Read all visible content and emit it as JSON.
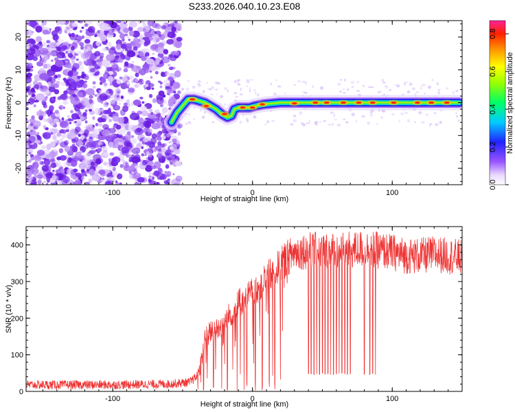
{
  "title": "S233.2026.040.10.23.E08",
  "colors": {
    "snr_line": "#ee3333",
    "scatter": "#7722ee",
    "axis": "#000000"
  },
  "chart_data": [
    {
      "type": "heatmap",
      "name": "spectrogram",
      "xlabel": "Height of straight line (km)",
      "ylabel": "Frequency (Hz)",
      "xlim": [
        -162,
        150
      ],
      "ylim": [
        -25,
        25
      ],
      "xticks": [
        -100,
        0,
        100
      ],
      "xtick_labels": [
        "-100",
        "0",
        "100"
      ],
      "yticks": [
        -20,
        -10,
        0,
        10,
        20
      ],
      "ytick_labels": [
        "-20",
        "-10",
        "0",
        "10",
        "20"
      ],
      "noise_region_x": [
        -162,
        -55
      ],
      "noise_sparse_x": [
        -55,
        -50
      ],
      "ridge": {
        "x": [
          -58,
          -54,
          -50,
          -46,
          -42,
          -38,
          -34,
          -30,
          -26,
          -22,
          -18,
          -15,
          -13,
          -10,
          -6,
          -2,
          2,
          8,
          20,
          40,
          60,
          80,
          100,
          120,
          140,
          148
        ],
        "freq": [
          -6,
          -3,
          -1,
          1,
          1,
          0.5,
          0,
          -1,
          -2,
          -3.5,
          -4.5,
          -4,
          -2,
          -1.5,
          -1.5,
          -1.5,
          -1,
          -0.5,
          0,
          0,
          0,
          0,
          0,
          0,
          0,
          0
        ]
      },
      "ridge_peaks": [
        {
          "x": -43,
          "freq": 1
        },
        {
          "x": -33,
          "freq": -1
        },
        {
          "x": -20,
          "freq": -3.5
        },
        {
          "x": -7,
          "freq": -1.5
        },
        {
          "x": 0,
          "freq": -1.5
        },
        {
          "x": 7,
          "freq": -0.5
        },
        {
          "x": 30,
          "freq": -0.2
        },
        {
          "x": 45,
          "freq": 0
        },
        {
          "x": 53,
          "freq": 0
        },
        {
          "x": 65,
          "freq": 0
        },
        {
          "x": 76,
          "freq": 0
        },
        {
          "x": 86,
          "freq": 0
        },
        {
          "x": 101,
          "freq": 0
        },
        {
          "x": 118,
          "freq": 0
        },
        {
          "x": 128,
          "freq": 0
        },
        {
          "x": 139,
          "freq": 0
        }
      ]
    },
    {
      "type": "colorbar",
      "name": "amplitude-colorbar",
      "label": "Normalized spectral amplitude",
      "range": [
        0,
        0.87
      ],
      "ticks": [
        0.0,
        0.2,
        0.4,
        0.6,
        0.8
      ],
      "tick_labels": [
        "0.0",
        "0.2",
        "0.4",
        "0.6",
        "0.8"
      ]
    },
    {
      "type": "line",
      "name": "snr",
      "xlabel": "Height of straight line (km)",
      "ylabel": "SNR (10 * v/v)",
      "xlim": [
        -162,
        150
      ],
      "ylim": [
        0,
        450
      ],
      "xticks": [
        -100,
        0,
        100
      ],
      "xtick_labels": [
        "-100",
        "0",
        "100"
      ],
      "yticks": [
        0,
        100,
        200,
        300,
        400
      ],
      "ytick_labels": [
        "0",
        "100",
        "200",
        "300",
        "400"
      ],
      "envelope": {
        "x": [
          -162,
          -100,
          -60,
          -45,
          -40,
          -36,
          -34,
          -30,
          -25,
          -20,
          -15,
          -10,
          -5,
          0,
          5,
          10,
          15,
          20,
          25,
          30,
          40,
          50,
          60,
          70,
          80,
          90,
          100,
          110,
          120,
          130,
          140,
          150
        ],
        "mean": [
          18,
          18,
          20,
          25,
          40,
          90,
          140,
          165,
          170,
          190,
          215,
          240,
          255,
          270,
          290,
          310,
          325,
          345,
          365,
          380,
          385,
          385,
          385,
          385,
          390,
          385,
          380,
          370,
          370,
          375,
          370,
          365
        ]
      },
      "dropouts_x": [
        -35,
        -28,
        -22,
        -18,
        -11,
        -6,
        -4,
        2,
        7,
        12,
        16,
        20,
        40,
        42,
        44,
        46,
        48,
        50,
        52,
        54,
        56,
        58,
        60,
        62,
        64,
        66,
        68,
        70,
        80,
        84,
        86,
        88
      ],
      "dropout_level": 45,
      "noise_amplitude": 12
    }
  ]
}
